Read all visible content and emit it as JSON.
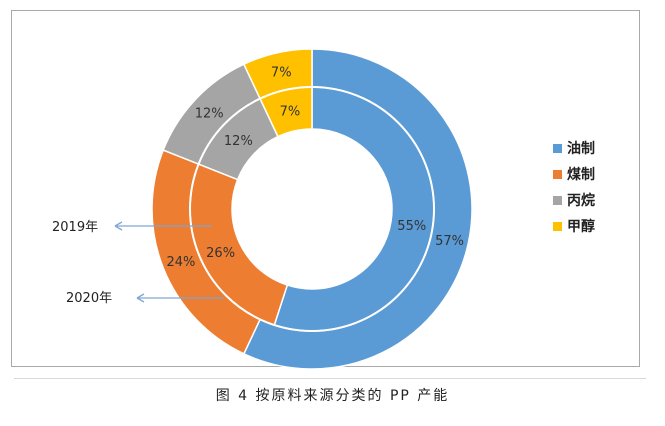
{
  "chart_data": {
    "type": "pie",
    "subtype": "doughnut",
    "categories": [
      "油制",
      "煤制",
      "丙烷",
      "甲醇"
    ],
    "colors": [
      "#5b9bd5",
      "#ed7d31",
      "#a5a5a5",
      "#ffc000"
    ],
    "series": [
      {
        "name": "2019年",
        "ring": "inner",
        "values": [
          55,
          26,
          12,
          7
        ],
        "labels": [
          "55%",
          "26%",
          "12%",
          "7%"
        ]
      },
      {
        "name": "2020年",
        "ring": "outer",
        "values": [
          57,
          24,
          12,
          7
        ],
        "labels": [
          "57%",
          "24%",
          "12%",
          "7%"
        ]
      }
    ],
    "legend_position": "right",
    "annotations": [
      "2019年",
      "2020年"
    ]
  },
  "caption": "图 4  按原料来源分类的 PP 产能"
}
